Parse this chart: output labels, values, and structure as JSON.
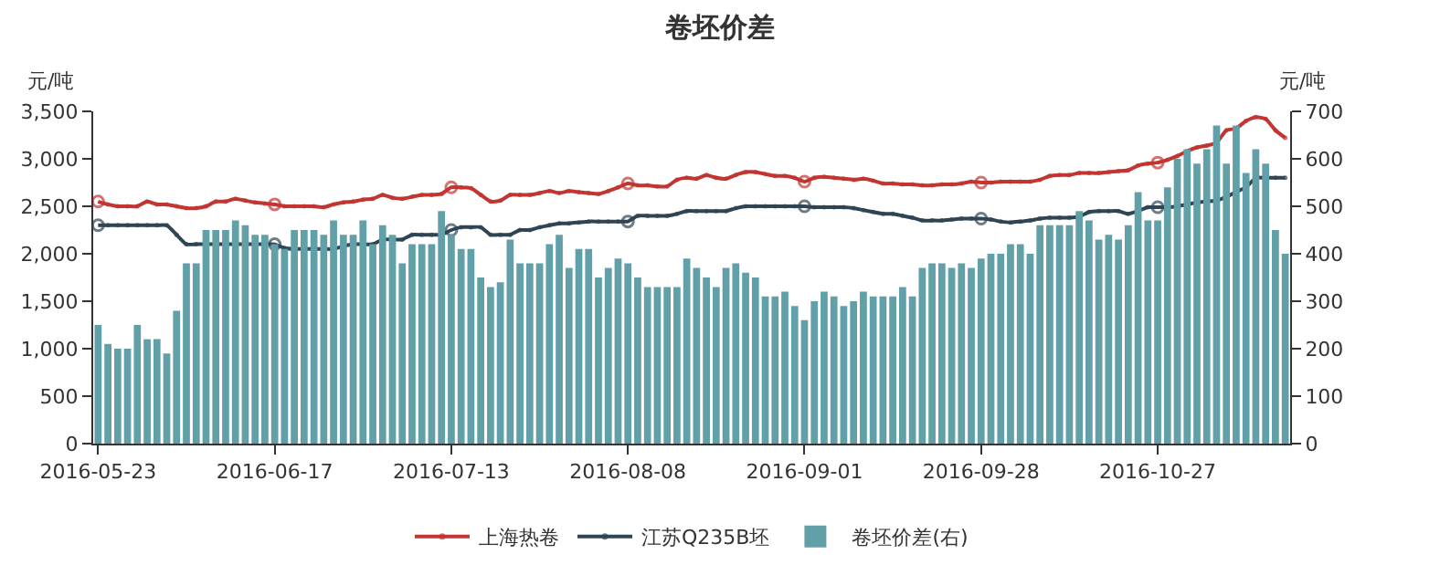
{
  "chart_data": {
    "type": "line",
    "title": "卷坯价差",
    "ylabel": "元/吨",
    "y2label": "元/吨",
    "categories": [
      "2016-05-23",
      null,
      null,
      null,
      null,
      null,
      null,
      null,
      null,
      null,
      null,
      null,
      null,
      null,
      null,
      null,
      null,
      null,
      "2016-06-17",
      null,
      null,
      null,
      null,
      null,
      null,
      null,
      null,
      null,
      null,
      null,
      null,
      null,
      null,
      null,
      null,
      null,
      "2016-07-13",
      null,
      null,
      null,
      null,
      null,
      null,
      null,
      null,
      null,
      null,
      null,
      null,
      null,
      null,
      null,
      null,
      null,
      "2016-08-08",
      null,
      null,
      null,
      null,
      null,
      null,
      null,
      null,
      null,
      null,
      null,
      null,
      null,
      null,
      null,
      null,
      null,
      "2016-09-01",
      null,
      null,
      null,
      null,
      null,
      null,
      null,
      null,
      null,
      null,
      null,
      null,
      null,
      null,
      null,
      null,
      null,
      "2016-09-28",
      null,
      null,
      null,
      null,
      null,
      null,
      null,
      null,
      null,
      null,
      null,
      null,
      null,
      null,
      null,
      null,
      null,
      "2016-10-27",
      null,
      null,
      null,
      null,
      null,
      null,
      null,
      null,
      null,
      null,
      null,
      null,
      null
    ],
    "series": [
      {
        "name": "上海热卷",
        "color": "#c23531",
        "values": [
          2550,
          2520,
          2500,
          2500,
          2500,
          2550,
          2520,
          2520,
          2500,
          2480,
          2480,
          2500,
          2550,
          2550,
          2580,
          2560,
          2540,
          2530,
          2520,
          2500,
          2500,
          2500,
          2500,
          2490,
          2520,
          2540,
          2550,
          2570,
          2580,
          2620,
          2590,
          2580,
          2600,
          2620,
          2620,
          2630,
          2700,
          2700,
          2690,
          2620,
          2550,
          2560,
          2620,
          2620,
          2620,
          2640,
          2660,
          2640,
          2660,
          2650,
          2640,
          2630,
          2660,
          2700,
          2740,
          2720,
          2720,
          2710,
          2710,
          2780,
          2800,
          2790,
          2830,
          2800,
          2790,
          2830,
          2860,
          2860,
          2840,
          2820,
          2820,
          2800,
          2760,
          2800,
          2810,
          2800,
          2790,
          2780,
          2790,
          2770,
          2740,
          2740,
          2730,
          2730,
          2720,
          2720,
          2730,
          2730,
          2740,
          2760,
          2750,
          2750,
          2760,
          2760,
          2760,
          2760,
          2780,
          2820,
          2830,
          2830,
          2850,
          2850,
          2850,
          2860,
          2870,
          2880,
          2930,
          2950,
          2960,
          2990,
          3030,
          3080,
          3120,
          3140,
          3170,
          3300,
          3320,
          3400,
          3440,
          3420,
          3300,
          3220
        ]
      },
      {
        "name": "江苏Q235B坯",
        "color": "#2f4554",
        "values": [
          2300,
          2300,
          2300,
          2300,
          2300,
          2300,
          2300,
          2300,
          2200,
          2100,
          2100,
          2100,
          2100,
          2100,
          2100,
          2100,
          2100,
          2100,
          2100,
          2060,
          2050,
          2050,
          2050,
          2050,
          2050,
          2080,
          2100,
          2100,
          2100,
          2150,
          2150,
          2150,
          2200,
          2200,
          2200,
          2200,
          2250,
          2280,
          2280,
          2280,
          2200,
          2200,
          2200,
          2250,
          2250,
          2280,
          2300,
          2320,
          2320,
          2330,
          2340,
          2340,
          2340,
          2340,
          2340,
          2400,
          2400,
          2400,
          2400,
          2420,
          2450,
          2450,
          2450,
          2450,
          2450,
          2480,
          2500,
          2500,
          2500,
          2500,
          2500,
          2500,
          2500,
          2490,
          2490,
          2490,
          2490,
          2480,
          2460,
          2440,
          2420,
          2420,
          2400,
          2380,
          2350,
          2350,
          2350,
          2360,
          2370,
          2370,
          2370,
          2360,
          2340,
          2330,
          2340,
          2350,
          2370,
          2380,
          2380,
          2380,
          2390,
          2440,
          2450,
          2450,
          2450,
          2420,
          2450,
          2490,
          2490,
          2490,
          2500,
          2520,
          2540,
          2550,
          2560,
          2600,
          2650,
          2700,
          2800,
          2800,
          2800,
          2800
        ]
      },
      {
        "name": "卷坯价差(右)",
        "type": "bar",
        "axis": "y2",
        "color": "#61a0a8",
        "values": [
          250,
          210,
          200,
          200,
          250,
          220,
          220,
          190,
          280,
          380,
          380,
          450,
          450,
          450,
          470,
          460,
          440,
          440,
          420,
          410,
          450,
          450,
          450,
          440,
          470,
          440,
          440,
          470,
          420,
          460,
          440,
          380,
          420,
          420,
          420,
          490,
          440,
          410,
          410,
          350,
          330,
          340,
          430,
          380,
          380,
          380,
          420,
          440,
          370,
          410,
          410,
          350,
          370,
          390,
          380,
          350,
          330,
          330,
          330,
          330,
          390,
          370,
          350,
          330,
          370,
          380,
          360,
          350,
          310,
          310,
          320,
          290,
          260,
          300,
          320,
          310,
          290,
          300,
          320,
          310,
          310,
          310,
          330,
          310,
          370,
          380,
          380,
          370,
          380,
          370,
          390,
          400,
          400,
          420,
          420,
          400,
          460,
          460,
          460,
          460,
          490,
          470,
          430,
          440,
          430,
          460,
          530,
          470,
          470,
          540,
          600,
          620,
          590,
          620,
          670,
          590,
          670,
          570,
          620,
          590,
          450,
          400
        ]
      }
    ],
    "ylim": [
      0,
      3500
    ],
    "yticks": [
      0,
      500,
      {
        "value": 1000,
        "label": "1,000"
      },
      {
        "value": 1500,
        "label": "1,500"
      },
      {
        "value": 2000,
        "label": "2,000"
      },
      {
        "value": 2500,
        "label": "2,500"
      },
      {
        "value": 3000,
        "label": "3,000"
      },
      {
        "value": 3500,
        "label": "3,500"
      }
    ],
    "y2lim": [
      0,
      700
    ],
    "y2ticks": [
      0,
      100,
      200,
      300,
      400,
      500,
      600,
      700
    ],
    "marker": "circle",
    "grid": false,
    "legend": "bottom"
  }
}
